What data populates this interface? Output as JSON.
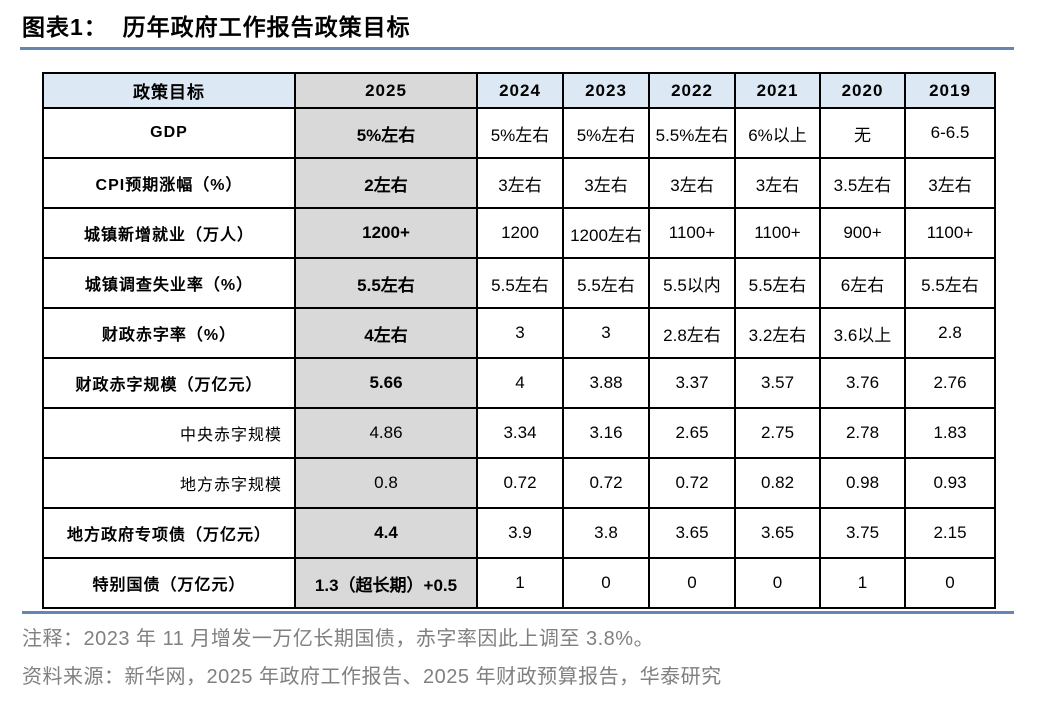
{
  "title": "图表1：  历年政府工作报告政策目标",
  "table": {
    "header": [
      "政策目标",
      "2025",
      "2024",
      "2023",
      "2022",
      "2021",
      "2020",
      "2019"
    ],
    "highlight_column": "2025",
    "rows": [
      {
        "label": "GDP",
        "emphasis": true,
        "label_align": "center",
        "values": [
          "5%左右",
          "5%左右",
          "5%左右",
          "5.5%左右",
          "6%以上",
          "无",
          "6-6.5"
        ]
      },
      {
        "label": "CPI预期涨幅（%）",
        "emphasis": true,
        "label_align": "center",
        "values": [
          "2左右",
          "3左右",
          "3左右",
          "3左右",
          "3左右",
          "3.5左右",
          "3左右"
        ]
      },
      {
        "label": "城镇新增就业（万人）",
        "emphasis": true,
        "label_align": "center",
        "values": [
          "1200+",
          "1200",
          "1200左右",
          "1100+",
          "1100+",
          "900+",
          "1100+"
        ]
      },
      {
        "label": "城镇调查失业率（%）",
        "emphasis": true,
        "label_align": "center",
        "values": [
          "5.5左右",
          "5.5左右",
          "5.5左右",
          "5.5以内",
          "5.5左右",
          "6左右",
          "5.5左右"
        ]
      },
      {
        "label": "财政赤字率（%）",
        "emphasis": true,
        "label_align": "center",
        "values": [
          "4左右",
          "3",
          "3",
          "2.8左右",
          "3.2左右",
          "3.6以上",
          "2.8"
        ]
      },
      {
        "label": "财政赤字规模（万亿元）",
        "emphasis": true,
        "label_align": "center",
        "values": [
          "5.66",
          "4",
          "3.88",
          "3.37",
          "3.57",
          "3.76",
          "2.76"
        ]
      },
      {
        "label": "中央赤字规模",
        "emphasis": false,
        "label_align": "right",
        "values": [
          "4.86",
          "3.34",
          "3.16",
          "2.65",
          "2.75",
          "2.78",
          "1.83"
        ]
      },
      {
        "label": "地方赤字规模",
        "emphasis": false,
        "label_align": "right",
        "values": [
          "0.8",
          "0.72",
          "0.72",
          "0.72",
          "0.82",
          "0.98",
          "0.93"
        ]
      },
      {
        "label": "地方政府专项债（万亿元）",
        "emphasis": true,
        "label_align": "center",
        "values": [
          "4.4",
          "3.9",
          "3.8",
          "3.65",
          "3.65",
          "3.75",
          "2.15"
        ]
      },
      {
        "label": "特别国债（万亿元）",
        "emphasis": true,
        "label_align": "center",
        "values": [
          "1.3（超长期）+0.5",
          "1",
          "0",
          "0",
          "0",
          "1",
          "0"
        ]
      }
    ]
  },
  "notes": {
    "annotation": "注释：2023 年 11 月增发一万亿长期国债，赤字率因此上调至 3.8%。",
    "source": "资料来源：新华网，2025 年政府工作报告、2025 年财政预算报告，华泰研究"
  },
  "colors": {
    "header_blue": "#dce8f4",
    "highlight_gray": "#d9d9d9",
    "rule_blue": "#6486b2",
    "note_gray": "#808080",
    "border_black": "#000000"
  }
}
